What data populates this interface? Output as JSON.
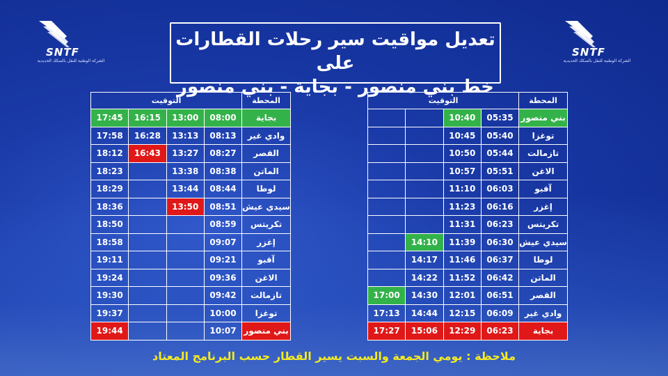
{
  "brand": {
    "name": "SNTF",
    "subtitle": "الشركة الوطنية للنقل بالسكك الحديدية"
  },
  "title": {
    "line1": "تعديل مواقيت سير رحلات القطارات على",
    "line2": "خط بني منصور - بجاية - بني منصور"
  },
  "headers": {
    "station": "المحطة",
    "time": "التوقيت"
  },
  "colors": {
    "background": "#1a3aa8",
    "green": "#33b24a",
    "red": "#e01818",
    "note": "#f4ea22"
  },
  "right_table": {
    "rows": [
      {
        "station": "بني منصور",
        "station_color": "green",
        "times": [
          "05:35",
          "10:40",
          "",
          ""
        ],
        "time_colors": [
          "",
          "green",
          "",
          ""
        ]
      },
      {
        "station": "توغزا",
        "station_color": "",
        "times": [
          "05:40",
          "10:45",
          "",
          ""
        ],
        "time_colors": [
          "",
          "",
          "",
          ""
        ]
      },
      {
        "station": "تازمالت",
        "station_color": "",
        "times": [
          "05:44",
          "10:50",
          "",
          ""
        ],
        "time_colors": [
          "",
          "",
          "",
          ""
        ]
      },
      {
        "station": "الاغن",
        "station_color": "",
        "times": [
          "05:51",
          "10:57",
          "",
          ""
        ],
        "time_colors": [
          "",
          "",
          "",
          ""
        ]
      },
      {
        "station": "آقبو",
        "station_color": "",
        "times": [
          "06:03",
          "11:10",
          "",
          ""
        ],
        "time_colors": [
          "",
          "",
          "",
          ""
        ]
      },
      {
        "station": "إغزر",
        "station_color": "",
        "times": [
          "06:16",
          "11:23",
          "",
          ""
        ],
        "time_colors": [
          "",
          "",
          "",
          ""
        ]
      },
      {
        "station": "تكريتس",
        "station_color": "",
        "times": [
          "06:23",
          "11:31",
          "",
          ""
        ],
        "time_colors": [
          "",
          "",
          "",
          ""
        ]
      },
      {
        "station": "سيدي عيش",
        "station_color": "",
        "times": [
          "06:30",
          "11:39",
          "14:10",
          ""
        ],
        "time_colors": [
          "",
          "",
          "green",
          ""
        ]
      },
      {
        "station": "لوطا",
        "station_color": "",
        "times": [
          "06:37",
          "11:46",
          "14:17",
          ""
        ],
        "time_colors": [
          "",
          "",
          "",
          ""
        ]
      },
      {
        "station": "الماتن",
        "station_color": "",
        "times": [
          "06:42",
          "11:52",
          "14:22",
          ""
        ],
        "time_colors": [
          "",
          "",
          "",
          ""
        ]
      },
      {
        "station": "القصر",
        "station_color": "",
        "times": [
          "06:51",
          "12:01",
          "14:30",
          "17:00"
        ],
        "time_colors": [
          "",
          "",
          "",
          "green"
        ]
      },
      {
        "station": "وادي غير",
        "station_color": "",
        "times": [
          "06:09",
          "12:15",
          "14:44",
          "17:13"
        ],
        "time_colors": [
          "",
          "",
          "",
          ""
        ]
      },
      {
        "station": "بجاية",
        "station_color": "red",
        "times": [
          "06:23",
          "12:29",
          "15:06",
          "17:27"
        ],
        "time_colors": [
          "red",
          "red",
          "red",
          "red"
        ]
      }
    ]
  },
  "left_table": {
    "rows": [
      {
        "station": "بجاية",
        "station_color": "green",
        "times": [
          "08:00",
          "13:00",
          "16:15",
          "17:45"
        ],
        "time_colors": [
          "green",
          "green",
          "green",
          "green"
        ]
      },
      {
        "station": "وادي غير",
        "station_color": "",
        "times": [
          "08:13",
          "13:13",
          "16:28",
          "17:58"
        ],
        "time_colors": [
          "",
          "",
          "",
          ""
        ]
      },
      {
        "station": "القصر",
        "station_color": "",
        "times": [
          "08:27",
          "13:27",
          "16:43",
          "18:12"
        ],
        "time_colors": [
          "",
          "",
          "red",
          ""
        ]
      },
      {
        "station": "الماتن",
        "station_color": "",
        "times": [
          "08:38",
          "13:38",
          "",
          "18:23"
        ],
        "time_colors": [
          "",
          "",
          "",
          ""
        ]
      },
      {
        "station": "لوطا",
        "station_color": "",
        "times": [
          "08:44",
          "13:44",
          "",
          "18:29"
        ],
        "time_colors": [
          "",
          "",
          "",
          ""
        ]
      },
      {
        "station": "سيدي عيش",
        "station_color": "",
        "times": [
          "08:51",
          "13:50",
          "",
          "18:36"
        ],
        "time_colors": [
          "",
          "red",
          "",
          ""
        ]
      },
      {
        "station": "تكريتس",
        "station_color": "",
        "times": [
          "08:59",
          "",
          "",
          "18:50"
        ],
        "time_colors": [
          "",
          "",
          "",
          ""
        ]
      },
      {
        "station": "إغزر",
        "station_color": "",
        "times": [
          "09:07",
          "",
          "",
          "18:58"
        ],
        "time_colors": [
          "",
          "",
          "",
          ""
        ]
      },
      {
        "station": "آقبو",
        "station_color": "",
        "times": [
          "09:21",
          "",
          "",
          "19:11"
        ],
        "time_colors": [
          "",
          "",
          "",
          ""
        ]
      },
      {
        "station": "الاغن",
        "station_color": "",
        "times": [
          "09:36",
          "",
          "",
          "19:24"
        ],
        "time_colors": [
          "",
          "",
          "",
          ""
        ]
      },
      {
        "station": "تازمالت",
        "station_color": "",
        "times": [
          "09:42",
          "",
          "",
          "19:30"
        ],
        "time_colors": [
          "",
          "",
          "",
          ""
        ]
      },
      {
        "station": "توغزا",
        "station_color": "",
        "times": [
          "10:00",
          "",
          "",
          "19:37"
        ],
        "time_colors": [
          "",
          "",
          "",
          ""
        ]
      },
      {
        "station": "بني منصور",
        "station_color": "red",
        "times": [
          "10:07",
          "",
          "",
          "19:44"
        ],
        "time_colors": [
          "",
          "",
          "",
          "red"
        ]
      }
    ]
  },
  "note": "ملاحظة : يومي الجمعة والسبت يسير القطار حسب البرنامج المعتاد"
}
